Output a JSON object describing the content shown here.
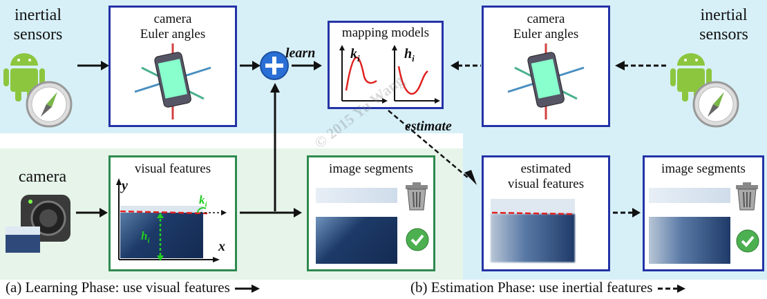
{
  "learning": {
    "inertial_label": "inertial\nsensors",
    "camera_box_title": "camera\nEuler angles",
    "learn_label": "learn",
    "models_title": "mapping models",
    "k_label": "k",
    "h_label": "h",
    "sub_i": "i",
    "camera_label": "camera",
    "visual_features_title": "visual features",
    "y_axis": "y",
    "x_axis": "x",
    "segments_title": "image segments"
  },
  "estimation": {
    "inertial_label": "inertial\nsensors",
    "camera_box_title": "camera\nEuler angles",
    "estimate_label": "estimate",
    "estimated_title": "estimated\nvisual features",
    "segments_title": "image segments"
  },
  "watermark": "© 2015 Yu Wang",
  "captions": {
    "learning": "(a) Learning Phase: use visual features",
    "estimation": "(b) Estimation Phase: use inertial features"
  },
  "colors": {
    "blue_border": "#2332a6",
    "green_border": "#2e8a4f",
    "red_curve": "#e02020",
    "green_marker": "#22cc22"
  }
}
